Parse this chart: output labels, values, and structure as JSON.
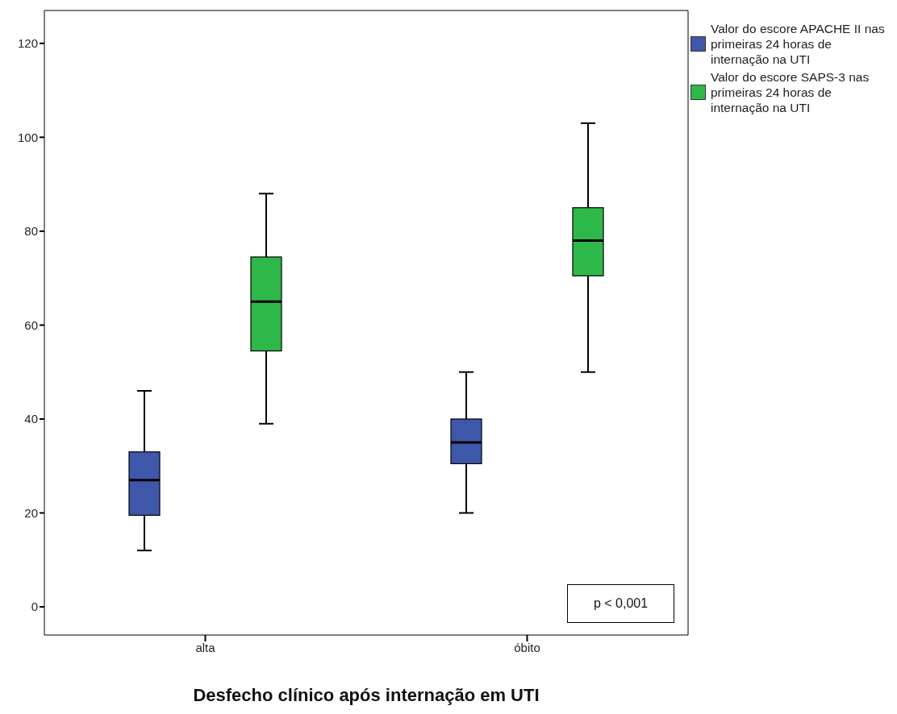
{
  "chart_data": {
    "type": "box",
    "xlabel": "Desfecho clínico após internação em UTI",
    "categories": [
      "alta",
      "óbito"
    ],
    "series": [
      {
        "name": "Valor do escore APACHE II nas primeiras 24 horas de internação na UTI",
        "color": "#3f57aa",
        "boxes": [
          {
            "low": 12,
            "q1": 19.5,
            "median": 27,
            "q3": 33,
            "high": 46
          },
          {
            "low": 20,
            "q1": 30.5,
            "median": 35,
            "q3": 40,
            "high": 50
          }
        ]
      },
      {
        "name": "Valor do escore SAPS-3 nas primeiras 24 horas de internação na UTI",
        "color": "#2fb84a",
        "boxes": [
          {
            "low": 39,
            "q1": 54.5,
            "median": 65,
            "q3": 74.5,
            "high": 88
          },
          {
            "low": 50,
            "q1": 70.5,
            "median": 78,
            "q3": 85,
            "high": 103
          }
        ]
      }
    ],
    "ylim": [
      -6,
      127
    ],
    "yticks": [
      0,
      20,
      40,
      60,
      80,
      100,
      120
    ],
    "legend": "top right",
    "annotations": [
      "p < 0,001"
    ]
  }
}
